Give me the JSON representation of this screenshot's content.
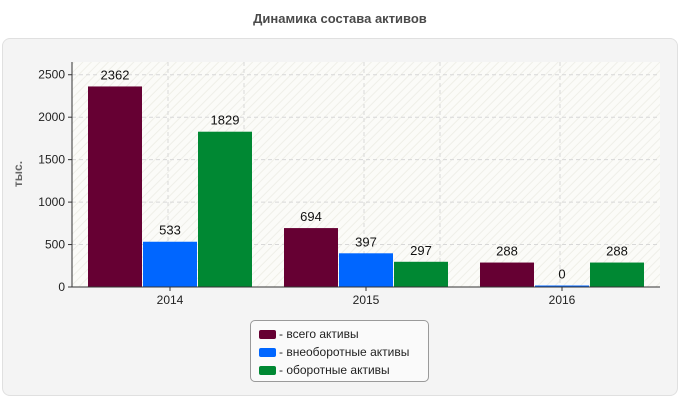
{
  "header": {
    "title": "Динамика состава активов"
  },
  "chart_data": {
    "type": "bar",
    "title": "Динамика состава активов",
    "ylabel": "тыс.",
    "xlabel": "",
    "ylim": [
      0,
      2650
    ],
    "yticks": [
      0,
      500,
      1000,
      1500,
      2000,
      2500
    ],
    "categories": [
      "2014",
      "2015",
      "2016"
    ],
    "grid": true,
    "legend_position": "bottom",
    "series": [
      {
        "name": "- всего активы",
        "color": "#660033",
        "values": [
          2362,
          694,
          288
        ]
      },
      {
        "name": "- внеоборотные активы",
        "color": "#0066ff",
        "values": [
          533,
          397,
          0
        ]
      },
      {
        "name": "- оборотные активы",
        "color": "#008833",
        "values": [
          1829,
          297,
          288
        ]
      }
    ]
  }
}
